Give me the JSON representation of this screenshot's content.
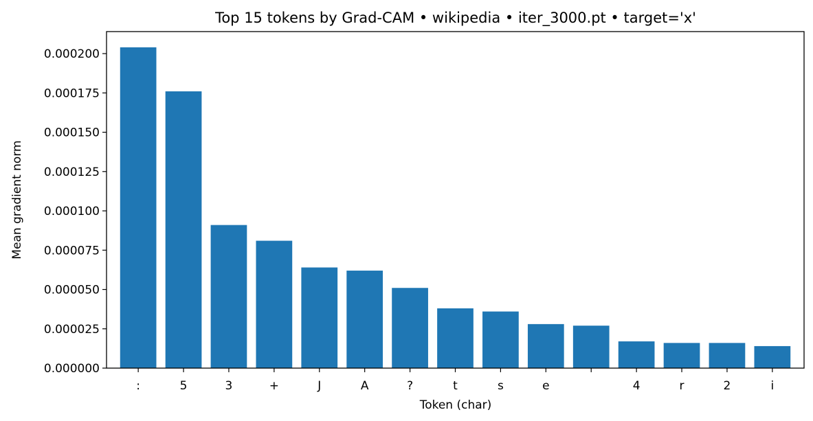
{
  "chart_data": {
    "type": "bar",
    "title": "Top 15 tokens by Grad-CAM • wikipedia • iter_3000.pt • target='x'",
    "xlabel": "Token (char)",
    "ylabel": "Mean gradient norm",
    "categories": [
      ":",
      "5",
      "3",
      "+",
      "J",
      "A",
      "?",
      "t",
      "s",
      "e",
      " ",
      "4",
      "r",
      "2",
      "i"
    ],
    "values": [
      0.000204,
      0.000176,
      9.1e-05,
      8.1e-05,
      6.4e-05,
      6.2e-05,
      5.1e-05,
      3.8e-05,
      3.6e-05,
      2.8e-05,
      2.7e-05,
      1.7e-05,
      1.6e-05,
      1.6e-05,
      1.4e-05
    ],
    "ylim": [
      0,
      0.000214
    ],
    "yticks": [
      0,
      2.5e-05,
      5e-05,
      7.5e-05,
      0.0001,
      0.000125,
      0.00015,
      0.000175,
      0.0002
    ],
    "ytick_labels": [
      "0.000000",
      "0.000025",
      "0.000050",
      "0.000075",
      "0.000100",
      "0.000125",
      "0.000150",
      "0.000175",
      "0.000200"
    ],
    "bar_color": "#1f77b4",
    "grid": false,
    "legend": false
  }
}
